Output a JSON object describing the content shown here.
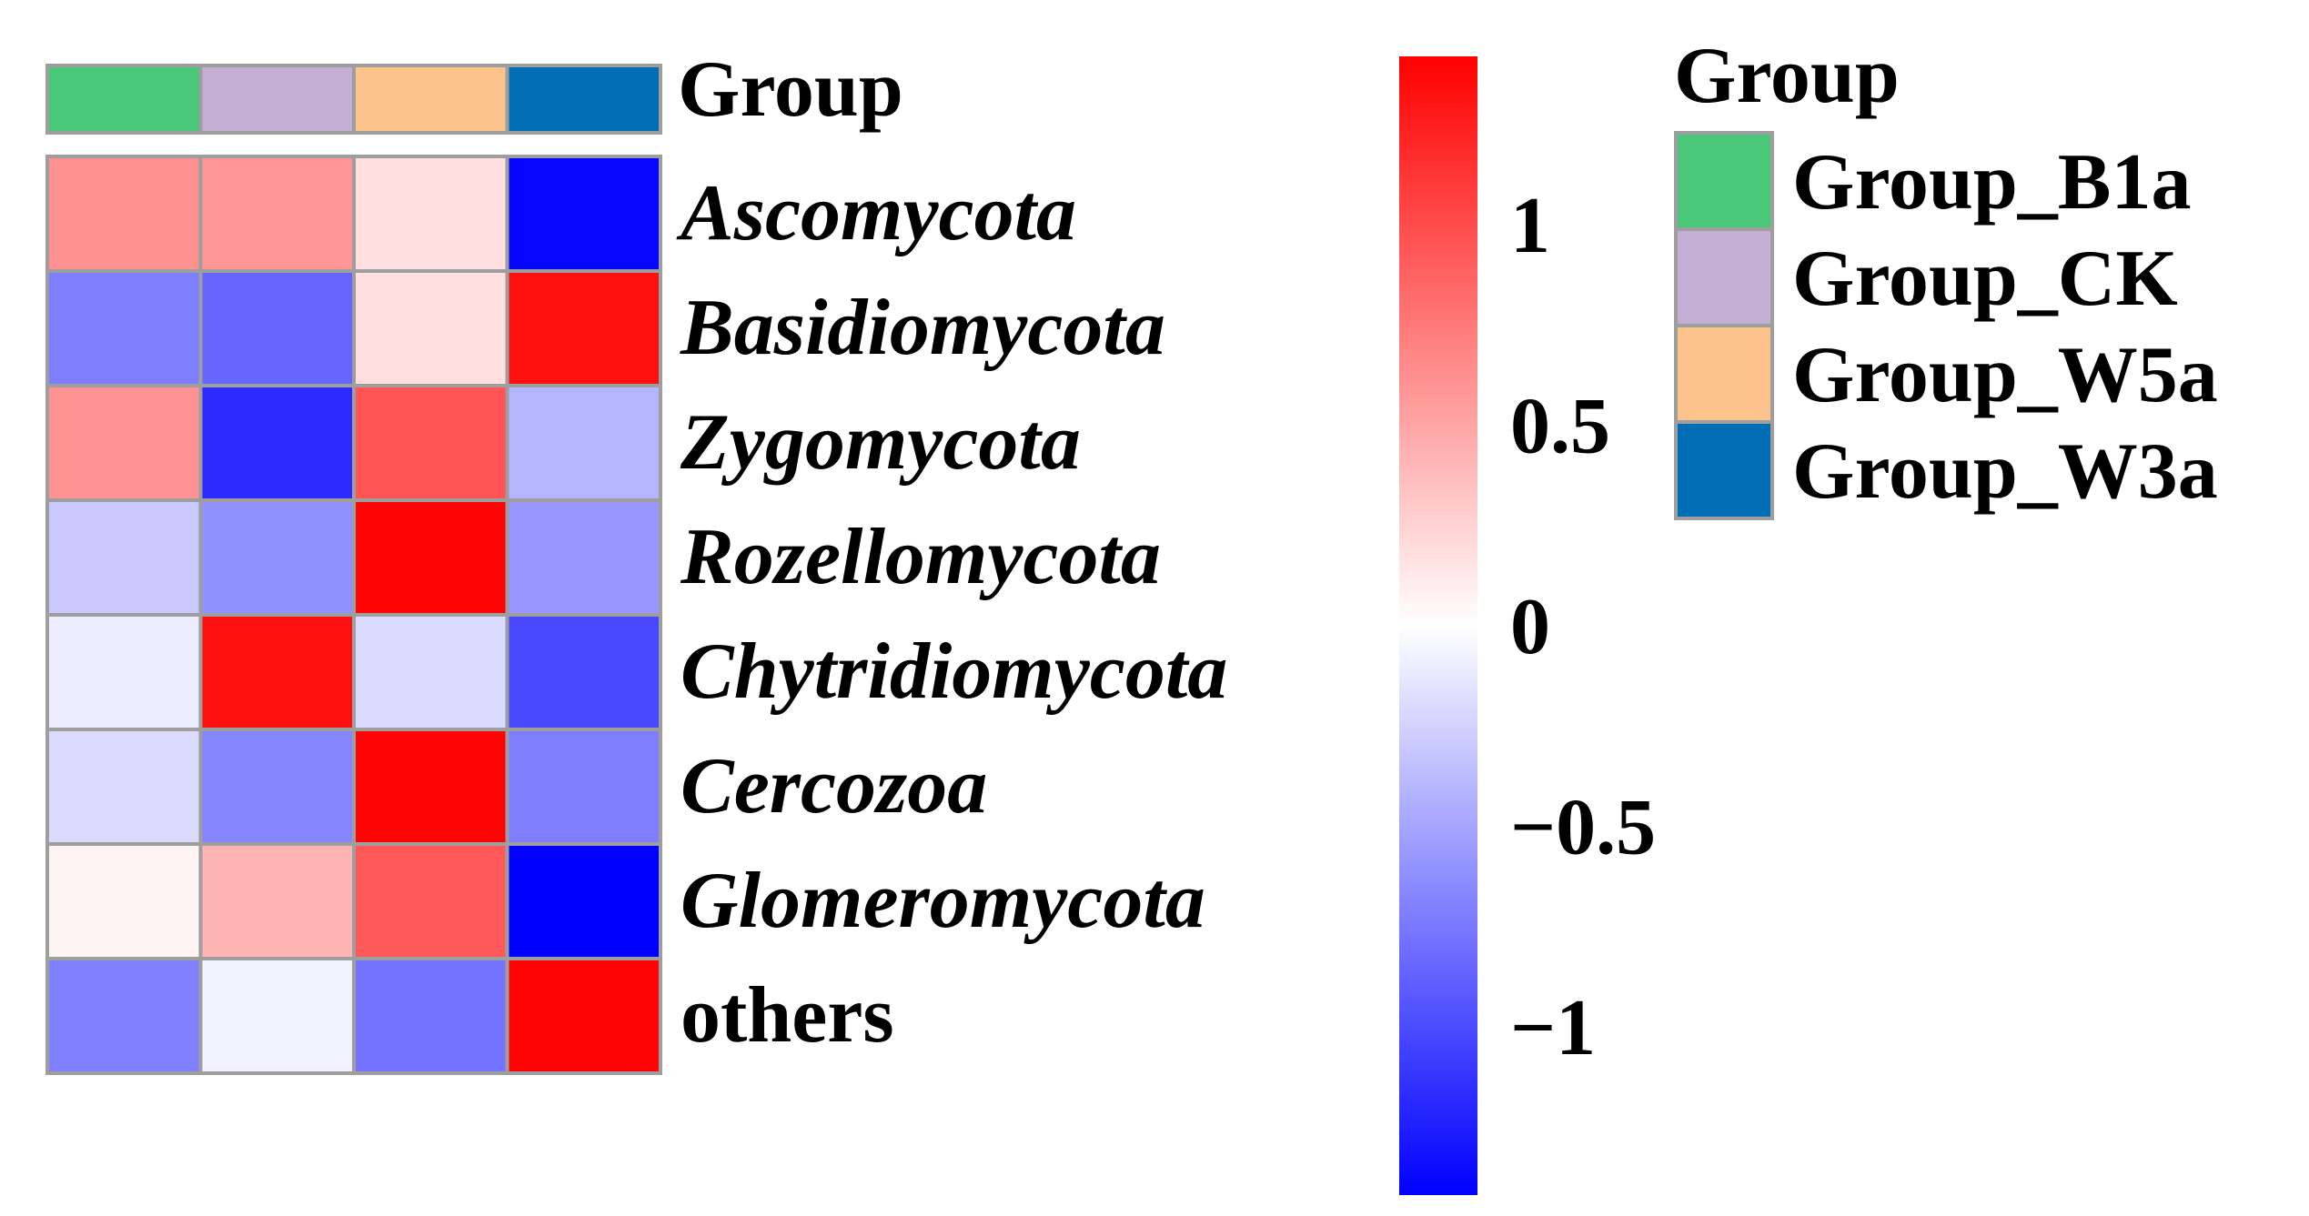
{
  "chart_data": {
    "type": "heatmap",
    "annotation_label": "Group",
    "columns": [
      "Group_B1a",
      "Group_CK",
      "Group_W5a",
      "Group_W3a"
    ],
    "column_groups": [
      "Group_B1a",
      "Group_CK",
      "Group_W5a",
      "Group_W3a"
    ],
    "rows": [
      "Ascomycota",
      "Basidiomycota",
      "Zygomycota",
      "Rozellomycota",
      "Chytridiomycota",
      "Cercozoa",
      "Glomeromycota",
      "others"
    ],
    "row_label_italic": [
      true,
      true,
      true,
      true,
      true,
      true,
      true,
      false
    ],
    "values": [
      [
        0.62,
        0.58,
        0.18,
        -1.38
      ],
      [
        -0.72,
        -0.85,
        0.18,
        1.33
      ],
      [
        0.6,
        -1.18,
        0.95,
        -0.42
      ],
      [
        -0.3,
        -0.62,
        1.4,
        -0.58
      ],
      [
        -0.1,
        1.33,
        -0.2,
        -1.02
      ],
      [
        -0.2,
        -0.68,
        1.4,
        -0.72
      ],
      [
        0.06,
        0.42,
        0.93,
        -1.42
      ],
      [
        -0.7,
        -0.08,
        -0.78,
        1.4
      ]
    ],
    "colorbar": {
      "range": [
        -1.42,
        1.42
      ],
      "ticks": [
        1,
        0.5,
        0,
        -0.5,
        -1
      ],
      "tick_labels": [
        "1",
        "0.5",
        "0",
        "−0.5",
        "−1"
      ],
      "colors": {
        "low": "#0000ff",
        "mid": "#ffffff",
        "high": "#ff0000"
      }
    },
    "legend": {
      "title": "Group",
      "items": [
        {
          "label": "Group_B1a",
          "color": "#48c878"
        },
        {
          "label": "Group_CK",
          "color": "#c3aed4"
        },
        {
          "label": "Group_W5a",
          "color": "#fdc38c"
        },
        {
          "label": "Group_W3a",
          "color": "#006db5"
        }
      ]
    }
  }
}
